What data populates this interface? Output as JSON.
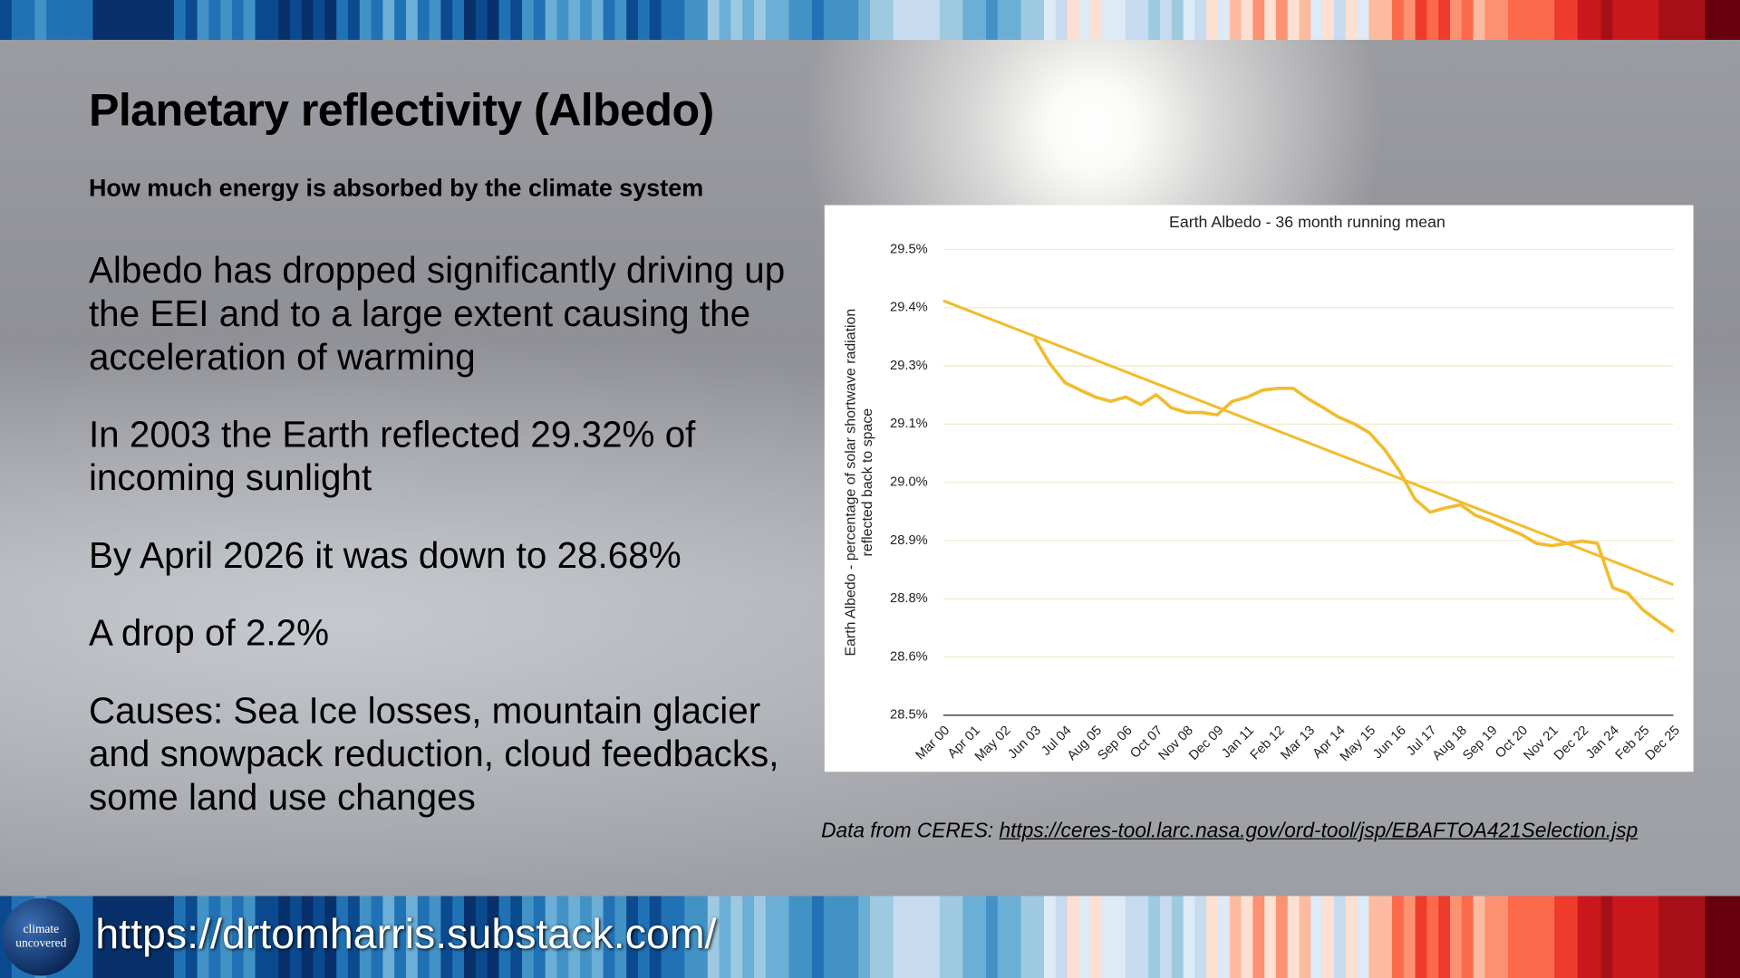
{
  "slide": {
    "title": "Planetary reflectivity (Albedo)",
    "subtitle": "How much energy is absorbed by the climate system",
    "paragraphs": [
      "Albedo has dropped significantly driving up the EEI and to a large extent causing the acceleration of warming",
      "In 2003 the Earth reflected 29.32% of incoming sunlight",
      "By April 2026 it was down to 28.68%",
      "A drop of 2.2%",
      "Causes: Sea Ice losses, mountain glacier and snowpack reduction, cloud feedbacks, some land use changes"
    ],
    "source_prefix": "Data from CERES: ",
    "source_link": "https://ceres-tool.larc.nasa.gov/ord-tool/jsp/EBAFTOA421Selection.jsp",
    "logo_text": [
      "climate",
      "uncovered"
    ],
    "url": "https://drtomharris.substack.com/"
  },
  "chart_data": {
    "type": "line",
    "title": "Earth Albedo - 36 month running mean",
    "ylabel": [
      "Earth Albedo - percentage of solar shortwave radiation",
      "reflected back to space"
    ],
    "categories": [
      "Mar 00",
      null,
      "Apr 01",
      null,
      "May 02",
      null,
      "Jun 03",
      null,
      "Jul 04",
      null,
      "Aug 05",
      null,
      "Sep 06",
      null,
      "Oct 07",
      null,
      "Nov 08",
      null,
      "Dec 09",
      null,
      "Jan 11",
      null,
      "Feb 12",
      null,
      "Mar 13",
      null,
      "Apr 14",
      null,
      "May 15",
      null,
      "Jun 16",
      null,
      "Jul 17",
      null,
      "Aug 18",
      null,
      "Sep 19",
      null,
      "Oct 20",
      null,
      "Nov 21",
      null,
      "Dec 22",
      null,
      "Jan 24",
      null,
      "Feb 25",
      null,
      "Dec 25"
    ],
    "values": [
      null,
      null,
      null,
      null,
      null,
      null,
      29.31,
      29.255,
      29.214,
      29.198,
      29.183,
      29.174,
      29.183,
      29.167,
      29.188,
      29.16,
      29.15,
      29.15,
      29.145,
      29.174,
      29.183,
      29.198,
      29.202,
      29.202,
      29.179,
      29.16,
      29.14,
      29.126,
      29.107,
      29.071,
      29.024,
      28.964,
      28.936,
      28.945,
      28.952,
      28.929,
      28.917,
      28.902,
      28.888,
      28.869,
      28.864,
      28.869,
      28.874,
      28.869,
      28.774,
      28.762,
      28.726,
      28.702,
      28.679
    ],
    "color": "#f0bd30",
    "trendline": {
      "values": [
        29.39,
        28.78
      ],
      "color": "#f0bd30"
    },
    "ylim": [
      28.5,
      29.5
    ],
    "yticks": [
      {
        "value": 28.5,
        "label": "28.5%"
      },
      {
        "value": 28.625,
        "label": "28.6%"
      },
      {
        "value": 28.75,
        "label": "28.8%"
      },
      {
        "value": 28.875,
        "label": "28.9%"
      },
      {
        "value": 29.0,
        "label": "29.0%"
      },
      {
        "value": 29.125,
        "label": "29.1%"
      },
      {
        "value": 29.25,
        "label": "29.3%"
      },
      {
        "value": 29.375,
        "label": "29.4%"
      },
      {
        "value": 29.5,
        "label": "29.5%"
      }
    ],
    "grid": true
  }
}
